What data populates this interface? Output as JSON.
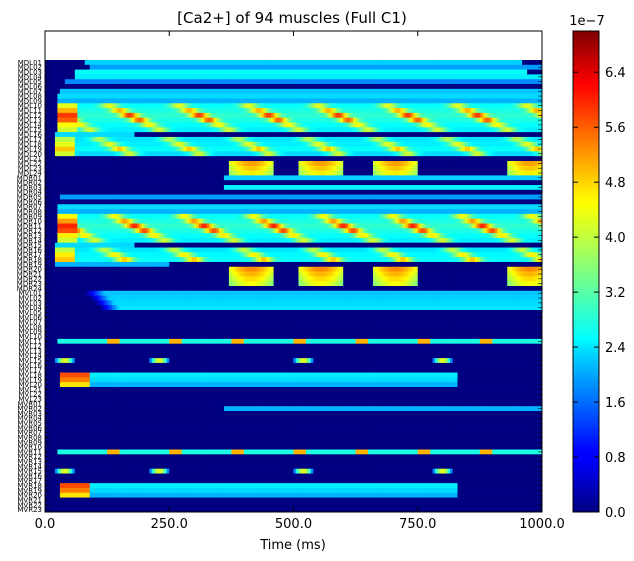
{
  "chart_data": {
    "type": "heatmap",
    "title": "[Ca2+] of 94 muscles (Full C1)",
    "xlabel": "Time (ms)",
    "ylabel": "",
    "xlim": [
      0,
      1000
    ],
    "x_ticks": [
      "0.0",
      "250.0",
      "500.0",
      "750.0",
      "1000.0"
    ],
    "colorbar": {
      "min": 0,
      "max": 7e-07,
      "offset_label": "1e−7",
      "ticks": [
        "0.0",
        "0.8",
        "1.6",
        "2.4",
        "3.2",
        "4.0",
        "4.8",
        "5.6",
        "6.4"
      ],
      "colormap": "jet"
    },
    "rows": [
      "MDL01",
      "MDL02",
      "MDL03",
      "MDL04",
      "MDL05",
      "MDL06",
      "MDL07",
      "MDL08",
      "MDL09",
      "MDL10",
      "MDL11",
      "MDL12",
      "MDL13",
      "MDL14",
      "MDL15",
      "MDL16",
      "MDL17",
      "MDL18",
      "MDL19",
      "MDL20",
      "MDL21",
      "MDL22",
      "MDL23",
      "MDL24",
      "MDR01",
      "MDR02",
      "MDR03",
      "MDR04",
      "MDR05",
      "MDR06",
      "MDR07",
      "MDR08",
      "MDR09",
      "MDR10",
      "MDR11",
      "MDR12",
      "MDR13",
      "MDR14",
      "MDR15",
      "MDR16",
      "MDR17",
      "MDR18",
      "MDR19",
      "MDR20",
      "MDR21",
      "MDR22",
      "MDR23",
      "MDR24",
      "MVL01",
      "MVL02",
      "MVL03",
      "MVL04",
      "MVL05",
      "MVL06",
      "MVL07",
      "MVL08",
      "MVL09",
      "MVL10",
      "MVL11",
      "MVL12",
      "MVL13",
      "MVL14",
      "MVL15",
      "MVL16",
      "MVL17",
      "MVL18",
      "MVL19",
      "MVL20",
      "MVL21",
      "MVL22",
      "MVL23",
      "MVR01",
      "MVR02",
      "MVR03",
      "MVR04",
      "MVR05",
      "MVR06",
      "MVR07",
      "MVR08",
      "MVR09",
      "MVR10",
      "MVR11",
      "MVR12",
      "MVR13",
      "MVR14",
      "MVR15",
      "MVR16",
      "MVR17",
      "MVR18",
      "MVR19",
      "MVR20",
      "MVR21",
      "MVR22",
      "MVR23"
    ],
    "row_profiles": {
      "MDL01": {
        "type": "steady",
        "onset": 80,
        "level": 0.33,
        "end": 960
      },
      "MDL02": {
        "type": "steady",
        "onset": 90,
        "level": 0.28
      },
      "MDL03": {
        "type": "steady",
        "onset": 60,
        "level": 0.38,
        "end": 970
      },
      "MDL04": {
        "type": "steady",
        "onset": 60,
        "level": 0.36
      },
      "MDL05": {
        "type": "steady",
        "onset": 40,
        "level": 0.26
      },
      "MDL06": {
        "type": "zero"
      },
      "MDL07": {
        "type": "steady",
        "onset": 30,
        "level": 0.32
      },
      "MDL08": {
        "type": "steady",
        "onset": 25,
        "level": 0.34
      },
      "MDL09": {
        "type": "steady",
        "onset": 25,
        "level": 0.3
      },
      "MDL10": {
        "type": "pulsed",
        "onset": 25,
        "base": 0.38,
        "peak": 0.6,
        "phase": 0
      },
      "MDL11": {
        "type": "pulsed",
        "onset": 25,
        "base": 0.4,
        "peak": 0.7,
        "phase": 20
      },
      "MDL12": {
        "type": "pulsed",
        "onset": 25,
        "base": 0.42,
        "peak": 0.82,
        "phase": 40
      },
      "MDL13": {
        "type": "pulsed",
        "onset": 25,
        "base": 0.4,
        "peak": 0.78,
        "phase": 60
      },
      "MDL14": {
        "type": "pulsed",
        "onset": 25,
        "base": 0.38,
        "peak": 0.62,
        "phase": 80
      },
      "MDL15": {
        "type": "pulsed",
        "onset": 25,
        "base": 0.36,
        "peak": 0.58,
        "phase": 100
      },
      "MDL16": {
        "type": "steady",
        "onset": 20,
        "level": 0.34,
        "end": 180
      },
      "MDL17": {
        "type": "pulsed",
        "onset": 20,
        "base": 0.35,
        "peak": 0.55,
        "phase": 120
      },
      "MDL18": {
        "type": "pulsed",
        "onset": 20,
        "base": 0.36,
        "peak": 0.6,
        "phase": 140
      },
      "MDL19": {
        "type": "pulsed",
        "onset": 20,
        "base": 0.38,
        "peak": 0.68,
        "phase": 160
      },
      "MDL20": {
        "type": "pulsed",
        "onset": 20,
        "base": 0.34,
        "peak": 0.58,
        "phase": 180
      },
      "MDL21": {
        "type": "zero"
      },
      "MDL22": {
        "type": "burst",
        "starts": [
          370,
          510,
          660,
          930
        ],
        "len": 90,
        "level": 0.72
      },
      "MDL23": {
        "type": "burst",
        "starts": [
          370,
          510,
          660,
          930
        ],
        "len": 90,
        "level": 0.68
      },
      "MDL24": {
        "type": "burst",
        "starts": [
          370,
          510,
          660,
          930
        ],
        "len": 90,
        "level": 0.64
      },
      "MDR01": {
        "type": "steady",
        "onset": 360,
        "level": 0.33
      },
      "MDR02": {
        "type": "zero"
      },
      "MDR03": {
        "type": "steady",
        "onset": 360,
        "level": 0.36
      },
      "MDR04": {
        "type": "zero"
      },
      "MDR05": {
        "type": "steady",
        "onset": 30,
        "level": 0.28
      },
      "MDR06": {
        "type": "zero"
      },
      "MDR07": {
        "type": "steady",
        "onset": 25,
        "level": 0.34
      },
      "MDR08": {
        "type": "steady",
        "onset": 25,
        "level": 0.3
      },
      "MDR09": {
        "type": "pulsed",
        "onset": 25,
        "base": 0.38,
        "peak": 0.62,
        "phase": 10
      },
      "MDR10": {
        "type": "pulsed",
        "onset": 25,
        "base": 0.4,
        "peak": 0.72,
        "phase": 30
      },
      "MDR11": {
        "type": "pulsed",
        "onset": 25,
        "base": 0.42,
        "peak": 0.84,
        "phase": 50
      },
      "MDR12": {
        "type": "pulsed",
        "onset": 25,
        "base": 0.4,
        "peak": 0.8,
        "phase": 70
      },
      "MDR13": {
        "type": "pulsed",
        "onset": 25,
        "base": 0.38,
        "peak": 0.64,
        "phase": 90
      },
      "MDR14": {
        "type": "pulsed",
        "onset": 25,
        "base": 0.36,
        "peak": 0.58,
        "phase": 110
      },
      "MDR15": {
        "type": "steady",
        "onset": 20,
        "level": 0.34,
        "end": 180
      },
      "MDR16": {
        "type": "pulsed",
        "onset": 20,
        "base": 0.35,
        "peak": 0.56,
        "phase": 130
      },
      "MDR17": {
        "type": "pulsed",
        "onset": 20,
        "base": 0.37,
        "peak": 0.64,
        "phase": 150
      },
      "MDR18": {
        "type": "pulsed",
        "onset": 20,
        "base": 0.38,
        "peak": 0.68,
        "phase": 170
      },
      "MDR19": {
        "type": "steady",
        "onset": 20,
        "level": 0.3,
        "end": 250
      },
      "MDR20": {
        "type": "burst",
        "starts": [
          370,
          510,
          660,
          930
        ],
        "len": 90,
        "level": 0.74
      },
      "MDR21": {
        "type": "burst",
        "starts": [
          370,
          510,
          660,
          930
        ],
        "len": 90,
        "level": 0.7
      },
      "MDR22": {
        "type": "burst",
        "starts": [
          370,
          510,
          660,
          930
        ],
        "len": 90,
        "level": 0.66
      },
      "MDR23": {
        "type": "burst",
        "starts": [
          370,
          510,
          660,
          930
        ],
        "len": 90,
        "level": 0.62
      },
      "MDR24": {
        "type": "zero"
      },
      "MVL01": {
        "type": "ramp",
        "onset": 80,
        "level": 0.32
      },
      "MVL02": {
        "type": "ramp",
        "onset": 90,
        "level": 0.33
      },
      "MVL03": {
        "type": "ramp",
        "onset": 100,
        "level": 0.34
      },
      "MVL04": {
        "type": "ramp",
        "onset": 110,
        "level": 0.35
      },
      "MVL05": {
        "type": "zero"
      },
      "MVL06": {
        "type": "zero"
      },
      "MVL07": {
        "type": "zero"
      },
      "MVL08": {
        "type": "zero"
      },
      "MVL09": {
        "type": "zero"
      },
      "MVL10": {
        "type": "zero"
      },
      "MVL11": {
        "type": "flicker",
        "onset": 25,
        "level": 0.4,
        "peak": 0.7
      },
      "MVL12": {
        "type": "zero"
      },
      "MVL13": {
        "type": "zero"
      },
      "MVL14": {
        "type": "zero"
      },
      "MVL15": {
        "type": "pulses",
        "starts": [
          20,
          210,
          500,
          780
        ],
        "len": 40,
        "level": 0.6
      },
      "MVL16": {
        "type": "zero"
      },
      "MVL17": {
        "type": "zero"
      },
      "MVL18": {
        "type": "fade",
        "onset": 30,
        "level": 0.36,
        "peak": 0.8,
        "end": 830
      },
      "MVL19": {
        "type": "fade",
        "onset": 30,
        "level": 0.34,
        "peak": 0.75,
        "end": 830
      },
      "MVL20": {
        "type": "fade",
        "onset": 30,
        "level": 0.3,
        "peak": 0.65,
        "end": 830
      },
      "MVL21": {
        "type": "zero"
      },
      "MVL22": {
        "type": "zero"
      },
      "MVL23": {
        "type": "zero"
      },
      "MVR01": {
        "type": "zero"
      },
      "MVR02": {
        "type": "steady",
        "onset": 360,
        "level": 0.3
      },
      "MVR03": {
        "type": "zero"
      },
      "MVR04": {
        "type": "zero"
      },
      "MVR05": {
        "type": "zero"
      },
      "MVR06": {
        "type": "zero"
      },
      "MVR07": {
        "type": "zero"
      },
      "MVR08": {
        "type": "zero"
      },
      "MVR09": {
        "type": "zero"
      },
      "MVR10": {
        "type": "zero"
      },
      "MVR11": {
        "type": "flicker",
        "onset": 25,
        "level": 0.4,
        "peak": 0.7
      },
      "MVR12": {
        "type": "zero"
      },
      "MVR13": {
        "type": "zero"
      },
      "MVR14": {
        "type": "zero"
      },
      "MVR15": {
        "type": "pulses",
        "starts": [
          20,
          210,
          500,
          780
        ],
        "len": 40,
        "level": 0.6
      },
      "MVR16": {
        "type": "zero"
      },
      "MVR17": {
        "type": "zero"
      },
      "MVR18": {
        "type": "fade",
        "onset": 30,
        "level": 0.36,
        "peak": 0.8,
        "end": 830
      },
      "MVR19": {
        "type": "fade",
        "onset": 30,
        "level": 0.34,
        "peak": 0.75,
        "end": 830
      },
      "MVR20": {
        "type": "fade",
        "onset": 30,
        "level": 0.3,
        "peak": 0.65,
        "end": 830
      },
      "MVR21": {
        "type": "zero"
      },
      "MVR22": {
        "type": "zero"
      },
      "MVR23": {
        "type": "zero"
      }
    }
  }
}
